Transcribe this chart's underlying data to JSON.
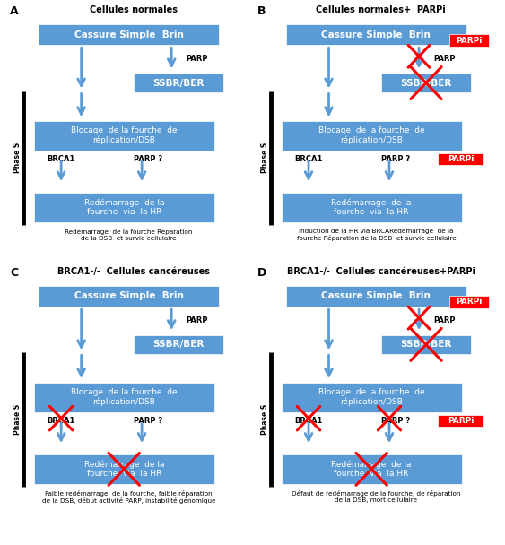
{
  "box_color": "#5B9BD5",
  "red_color": "#FF0000",
  "arrow_color": "#5B9BD5",
  "bg_color": "white",
  "title_A": "Cellules normales",
  "title_B": "Cellules normales+  PARPi",
  "title_C": "BRCA1-/-  Cellules cancéreuses",
  "title_D": "BRCA1-/-  Cellules cancéreuses+PARPi",
  "label_A": "A",
  "label_B": "B",
  "label_C": "C",
  "label_D": "D",
  "box1_text": "Cassure Simple  Brin",
  "box2_text": "SSBR/BER",
  "box3_text": "Blocage  de la fourche  de\nréplication/DSB",
  "box4_text": "Redémarrage  de la\nfourche  via  la HR",
  "parp_text": "PARP",
  "parpi_text": "PARPi",
  "brca1_text": "BRCA1",
  "parp_q_text": "PARP ?",
  "phase_s_text": "Phase S",
  "caption_A": "Redémarrage  de la fourche Réparation\nde la DSB  et survie cellulaire",
  "caption_B": "Induction de la HR via BRCARedemarrage  de la\nfourche Réparation de la DSB  et survie cellulaire",
  "caption_C": "Faible redémarrage  de la fourche, faible réparation\nde la DSB, début activité PARP, instabilité génomique",
  "caption_D": "Défaut de redémarrage de la fourche, de réparation\nde la DSB, mort cellulaire"
}
